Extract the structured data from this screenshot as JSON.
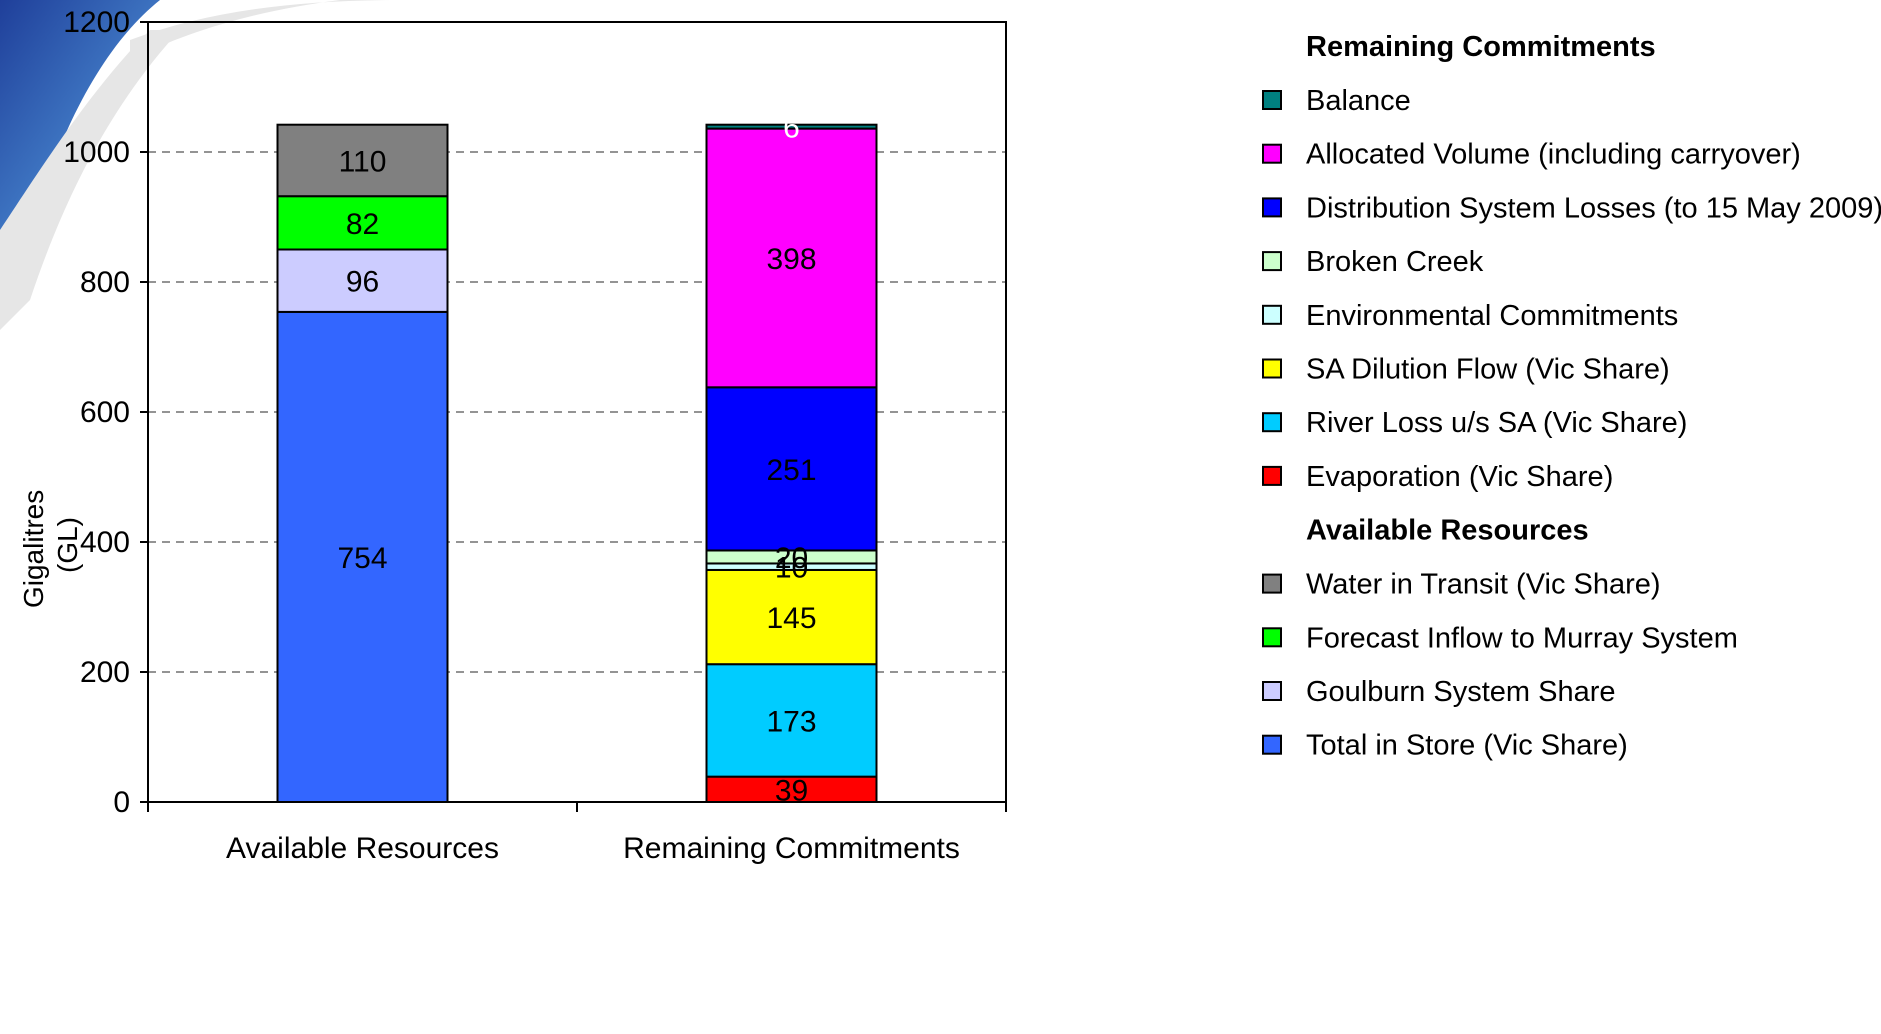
{
  "chart_data": {
    "type": "bar",
    "stacked": true,
    "ylabel_line1": "Gigalitres",
    "ylabel_line2": "(GL)",
    "ylim": [
      0,
      1200
    ],
    "yticks": [
      0,
      200,
      400,
      600,
      800,
      1000,
      1200
    ],
    "grid": true,
    "legend_position": "right",
    "categories": [
      "Available Resources",
      "Remaining Commitments"
    ],
    "groups": [
      {
        "name": "Available Resources",
        "series": [
          {
            "name": "Total in Store (Vic Share)",
            "value": 754,
            "label": "754",
            "color": "#3366FF"
          },
          {
            "name": "Goulburn System Share",
            "value": 96,
            "label": "96",
            "color": "#CCCCFF"
          },
          {
            "name": "Forecast Inflow to Murray System",
            "value": 82,
            "label": "82",
            "color": "#00FF00"
          },
          {
            "name": "Water in Transit (Vic Share)",
            "value": 110,
            "label": "110",
            "color": "#808080"
          }
        ]
      },
      {
        "name": "Remaining Commitments",
        "series": [
          {
            "name": "Evaporation (Vic Share)",
            "value": 39,
            "label": "39",
            "color": "#FF0000"
          },
          {
            "name": "River Loss u/s SA (Vic Share)",
            "value": 173,
            "label": "173",
            "color": "#00CCFF"
          },
          {
            "name": "SA Dilution Flow (Vic Share)",
            "value": 145,
            "label": "145",
            "color": "#FFFF00"
          },
          {
            "name": "Environmental Commitments",
            "value": 10,
            "label": "10",
            "color": "#CCFFFF"
          },
          {
            "name": "Broken Creek",
            "value": 20,
            "label": "20",
            "color": "#CCFFCC"
          },
          {
            "name": "Distribution System Losses (to 15 May 2009)",
            "value": 251,
            "label": "251",
            "color": "#0000FF"
          },
          {
            "name": "Allocated Volume (including carryover)",
            "value": 398,
            "label": "398",
            "color": "#FF00FF"
          },
          {
            "name": "Balance",
            "value": 6,
            "label": "6",
            "color": "#008080"
          }
        ]
      }
    ]
  },
  "legend": {
    "sections": [
      {
        "heading": "Remaining Commitments",
        "items": [
          {
            "label": "Balance",
            "color": "#008080"
          },
          {
            "label": "Allocated Volume (including carryover)",
            "color": "#FF00FF"
          },
          {
            "label": "Distribution System Losses (to 15 May 2009)",
            "color": "#0000FF"
          },
          {
            "label": "Broken Creek",
            "color": "#CCFFCC"
          },
          {
            "label": "Environmental Commitments",
            "color": "#CCFFFF"
          },
          {
            "label": "SA Dilution Flow (Vic Share)",
            "color": "#FFFF00"
          },
          {
            "label": "River Loss u/s SA (Vic Share)",
            "color": "#00CCFF"
          },
          {
            "label": "Evaporation (Vic Share)",
            "color": "#FF0000"
          }
        ]
      },
      {
        "heading": "Available Resources",
        "items": [
          {
            "label": "Water in Transit (Vic Share)",
            "color": "#808080"
          },
          {
            "label": "Forecast Inflow to Murray System",
            "color": "#00FF00"
          },
          {
            "label": "Goulburn System Share",
            "color": "#CCCCFF"
          },
          {
            "label": "Total in Store (Vic Share)",
            "color": "#3366FF"
          }
        ]
      }
    ]
  }
}
